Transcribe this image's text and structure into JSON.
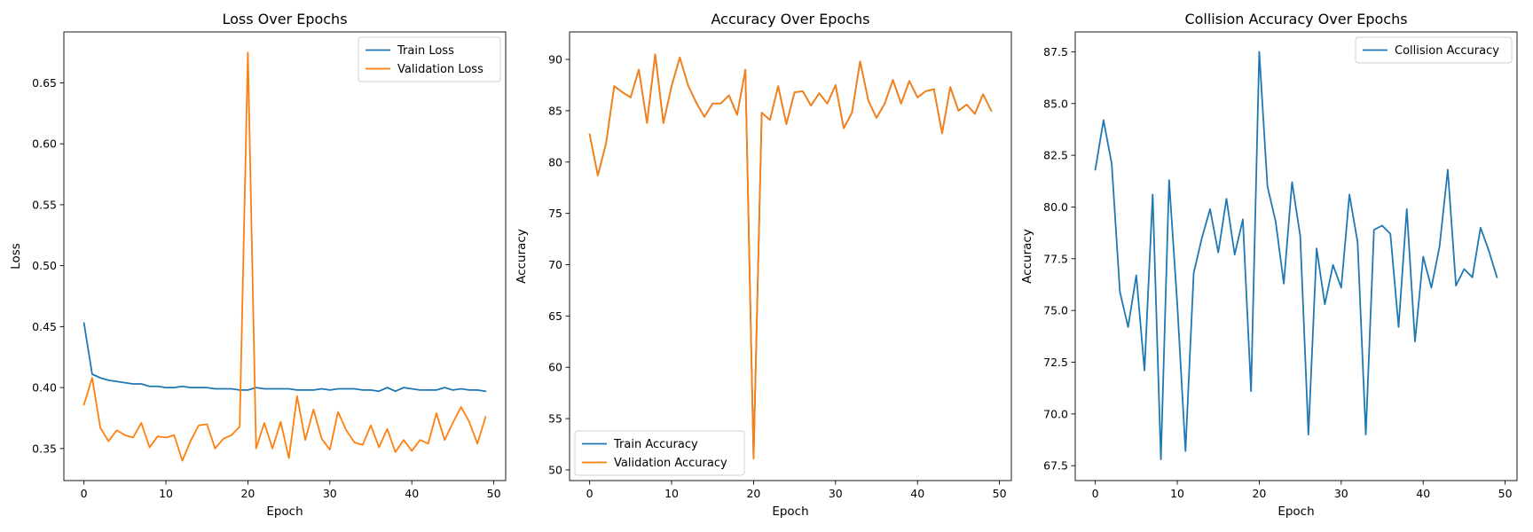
{
  "colors": {
    "blue": "#1f77b4",
    "orange": "#ff7f0e"
  },
  "chart_data": [
    {
      "type": "line",
      "title": "Loss Over Epochs",
      "xlabel": "Epoch",
      "ylabel": "Loss",
      "xlim": [
        -2.45,
        51.45
      ],
      "ylim": [
        0.3237,
        0.6918
      ],
      "xticks": [
        0,
        10,
        20,
        30,
        40,
        50
      ],
      "yticks": [
        0.35,
        0.4,
        0.45,
        0.5,
        0.55,
        0.6,
        0.65
      ],
      "ytick_labels": [
        "0.35",
        "0.40",
        "0.45",
        "0.50",
        "0.55",
        "0.60",
        "0.65"
      ],
      "legend": "top-right",
      "series": [
        {
          "name": "Train Loss",
          "color": "#1f77b4",
          "y": [
            0.453,
            0.411,
            0.408,
            0.406,
            0.405,
            0.404,
            0.403,
            0.403,
            0.401,
            0.401,
            0.4,
            0.4,
            0.401,
            0.4,
            0.4,
            0.4,
            0.399,
            0.399,
            0.399,
            0.398,
            0.398,
            0.4,
            0.399,
            0.399,
            0.399,
            0.399,
            0.398,
            0.398,
            0.398,
            0.399,
            0.398,
            0.399,
            0.399,
            0.399,
            0.398,
            0.398,
            0.397,
            0.4,
            0.397,
            0.4,
            0.399,
            0.398,
            0.398,
            0.398,
            0.4,
            0.398,
            0.399,
            0.398,
            0.398,
            0.397
          ]
        },
        {
          "name": "Validation Loss",
          "color": "#ff7f0e",
          "y": [
            0.386,
            0.408,
            0.367,
            0.356,
            0.365,
            0.361,
            0.359,
            0.371,
            0.351,
            0.36,
            0.359,
            0.361,
            0.34,
            0.356,
            0.369,
            0.37,
            0.35,
            0.358,
            0.361,
            0.368,
            0.675,
            0.35,
            0.371,
            0.35,
            0.372,
            0.342,
            0.393,
            0.357,
            0.382,
            0.358,
            0.349,
            0.38,
            0.365,
            0.355,
            0.353,
            0.369,
            0.351,
            0.366,
            0.347,
            0.357,
            0.348,
            0.357,
            0.354,
            0.379,
            0.357,
            0.371,
            0.384,
            0.372,
            0.354,
            0.376
          ]
        }
      ]
    },
    {
      "type": "line",
      "title": "Accuracy Over Epochs",
      "xlabel": "Epoch",
      "ylabel": "Accuracy",
      "xlim": [
        -2.45,
        51.45
      ],
      "ylim": [
        48.96,
        92.68
      ],
      "xticks": [
        0,
        10,
        20,
        30,
        40,
        50
      ],
      "yticks": [
        50,
        55,
        60,
        65,
        70,
        75,
        80,
        85,
        90
      ],
      "ytick_labels": [
        "50",
        "55",
        "60",
        "65",
        "70",
        "75",
        "80",
        "85",
        "90"
      ],
      "legend": "bottom-left",
      "series": [
        {
          "name": "Train Accuracy",
          "color": "#1f77b4",
          "y": [
            82.7,
            78.7,
            81.8,
            87.4,
            86.8,
            86.3,
            89.0,
            83.8,
            90.5,
            83.8,
            87.4,
            90.2,
            87.5,
            85.8,
            84.4,
            85.7,
            85.7,
            86.5,
            84.6,
            89.0,
            51.1,
            84.8,
            84.1,
            87.4,
            83.7,
            86.8,
            86.9,
            85.5,
            86.7,
            85.7,
            87.5,
            83.3,
            84.8,
            89.8,
            86.0,
            84.3,
            85.7,
            88.0,
            85.7,
            87.9,
            86.3,
            86.9,
            87.1,
            82.8,
            87.3,
            85.0,
            85.6,
            84.7,
            86.6,
            85.0
          ]
        },
        {
          "name": "Validation Accuracy",
          "color": "#ff7f0e",
          "y": [
            82.7,
            78.7,
            81.8,
            87.4,
            86.8,
            86.3,
            89.0,
            83.8,
            90.5,
            83.8,
            87.4,
            90.2,
            87.5,
            85.8,
            84.4,
            85.7,
            85.7,
            86.5,
            84.6,
            89.0,
            51.1,
            84.8,
            84.1,
            87.4,
            83.7,
            86.8,
            86.9,
            85.5,
            86.7,
            85.7,
            87.5,
            83.3,
            84.8,
            89.8,
            86.0,
            84.3,
            85.7,
            88.0,
            85.7,
            87.9,
            86.3,
            86.9,
            87.1,
            82.8,
            87.3,
            85.0,
            85.6,
            84.7,
            86.6,
            85.0
          ]
        }
      ]
    },
    {
      "type": "line",
      "title": "Collision Accuracy Over Epochs",
      "xlabel": "Epoch",
      "ylabel": "Accuracy",
      "xlim": [
        -2.45,
        51.45
      ],
      "ylim": [
        66.78,
        88.46
      ],
      "xticks": [
        0,
        10,
        20,
        30,
        40,
        50
      ],
      "yticks": [
        67.5,
        70.0,
        72.5,
        75.0,
        77.5,
        80.0,
        82.5,
        85.0,
        87.5
      ],
      "ytick_labels": [
        "67.5",
        "70.0",
        "72.5",
        "75.0",
        "77.5",
        "80.0",
        "82.5",
        "85.0",
        "87.5"
      ],
      "legend": "top-right",
      "series": [
        {
          "name": "Collision Accuracy",
          "color": "#1f77b4",
          "y": [
            81.8,
            84.2,
            82.1,
            75.9,
            74.2,
            76.7,
            72.1,
            80.6,
            67.8,
            81.3,
            75.3,
            68.2,
            76.8,
            78.5,
            79.9,
            77.8,
            80.4,
            77.7,
            79.4,
            71.1,
            87.5,
            81.0,
            79.3,
            76.3,
            81.2,
            78.6,
            69.0,
            78.0,
            75.3,
            77.2,
            76.1,
            80.6,
            78.3,
            69.0,
            78.9,
            79.1,
            78.7,
            74.2,
            79.9,
            73.5,
            77.6,
            76.1,
            78.1,
            81.8,
            76.2,
            77.0,
            76.6,
            79.0,
            77.9,
            76.6
          ]
        }
      ]
    }
  ]
}
